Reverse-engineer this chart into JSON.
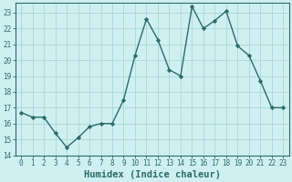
{
  "x": [
    0,
    1,
    2,
    3,
    4,
    5,
    6,
    7,
    8,
    9,
    10,
    11,
    12,
    13,
    14,
    15,
    16,
    17,
    18,
    19,
    20,
    21,
    22,
    23
  ],
  "y": [
    16.7,
    16.4,
    16.4,
    15.4,
    14.5,
    15.1,
    15.8,
    16.0,
    16.0,
    17.5,
    20.3,
    22.6,
    21.3,
    19.4,
    19.0,
    23.4,
    22.0,
    22.5,
    23.1,
    20.9,
    20.3,
    18.7,
    17.0,
    17.0
  ],
  "line_color": "#2d6b6b",
  "marker": "D",
  "marker_size": 2.2,
  "bg_color": "#cff0f0",
  "grid_color": "#a8d8d8",
  "xlabel": "Humidex (Indice chaleur)",
  "xlim": [
    -0.5,
    23.5
  ],
  "ylim": [
    14,
    23.6
  ],
  "yticks": [
    14,
    15,
    16,
    17,
    18,
    19,
    20,
    21,
    22,
    23
  ],
  "xticks": [
    0,
    1,
    2,
    3,
    4,
    5,
    6,
    7,
    8,
    9,
    10,
    11,
    12,
    13,
    14,
    15,
    16,
    17,
    18,
    19,
    20,
    21,
    22,
    23
  ],
  "tick_label_fontsize": 5.5,
  "xlabel_fontsize": 7.5,
  "line_width": 1.0,
  "spine_color": "#2d6b6b"
}
